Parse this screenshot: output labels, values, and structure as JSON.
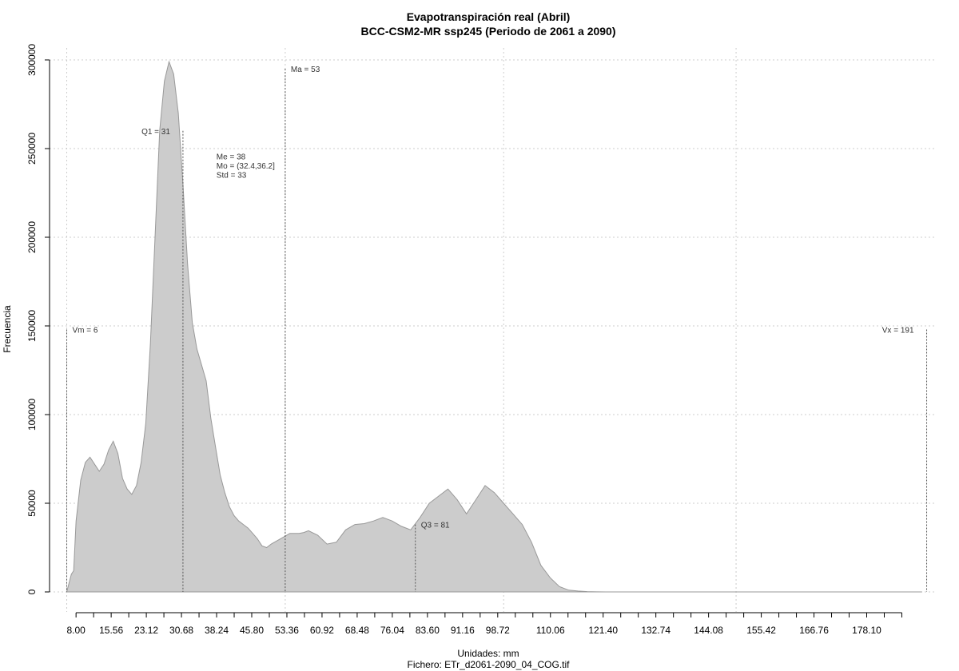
{
  "chart_data": {
    "type": "area",
    "title": "Evapotranspiración real (Abril)",
    "subtitle": "BCC-CSM2-MR ssp245 (Periodo de 2061 a 2090)",
    "xlabel": "Unidades: mm",
    "footer": "Fichero: ETr_d2061-2090_04_COG.tif",
    "ylabel": "Frecuencia",
    "xlim": [
      2.3,
      192.8
    ],
    "ylim": [
      0,
      300000
    ],
    "grid": true,
    "fill_color": "#cccccc",
    "line_color": "#999999",
    "x_tick_labels": [
      "8.00",
      "15.56",
      "23.12",
      "30.68",
      "38.24",
      "45.80",
      "53.36",
      "60.92",
      "68.48",
      "76.04",
      "83.60",
      "91.16",
      "98.72",
      "110.06",
      "121.40",
      "132.74",
      "144.08",
      "155.42",
      "166.76",
      "178.10"
    ],
    "x_tick_label_positions": [
      8.0,
      15.56,
      23.12,
      30.68,
      38.24,
      45.8,
      53.36,
      60.92,
      68.48,
      76.04,
      83.6,
      91.16,
      98.72,
      110.06,
      121.4,
      132.74,
      144.08,
      155.42,
      166.76,
      178.1
    ],
    "x_minor_ticks": [
      8.0,
      11.78,
      15.56,
      19.34,
      23.12,
      26.9,
      30.68,
      34.46,
      38.24,
      42.02,
      45.8,
      49.58,
      53.36,
      57.14,
      60.92,
      64.7,
      68.48,
      72.26,
      76.04,
      79.82,
      83.6,
      87.38,
      91.16,
      94.94,
      98.72,
      102.5,
      106.28,
      110.06,
      113.84,
      117.62,
      121.4,
      125.18,
      128.96,
      132.74,
      136.52,
      140.3,
      144.08,
      147.86,
      151.64,
      155.42,
      159.2,
      162.98,
      166.76,
      170.54,
      174.32,
      178.1,
      181.88,
      185.66
    ],
    "y_ticks": [
      0,
      50000,
      100000,
      150000,
      200000,
      250000,
      300000
    ],
    "y_tick_labels": [
      "0",
      "50000",
      "100000",
      "150000",
      "200000",
      "250000",
      "300000"
    ],
    "x_gridlines": [
      6,
      53,
      100,
      150
    ],
    "x": [
      6,
      7,
      7.5,
      8,
      9,
      10,
      11,
      12,
      13,
      14,
      15,
      16,
      17,
      18,
      19,
      20,
      21,
      22,
      23,
      24,
      25,
      26,
      27,
      28,
      29,
      30,
      31,
      32,
      33,
      34,
      35,
      36,
      37,
      38,
      39,
      40,
      41,
      42,
      43,
      44,
      45,
      46,
      47,
      48,
      49,
      50,
      52,
      54,
      55,
      56,
      57,
      58,
      60,
      62,
      64,
      66,
      68,
      70,
      72,
      74,
      76,
      78,
      80,
      82,
      84,
      86,
      88,
      90,
      92,
      94,
      96,
      98,
      100,
      102,
      104,
      106,
      108,
      110,
      112,
      114,
      116,
      118,
      120,
      122,
      124,
      126,
      128,
      130,
      132,
      134,
      136,
      140,
      150,
      160,
      170,
      180,
      190
    ],
    "values": [
      0,
      10000,
      12000,
      40000,
      63000,
      73000,
      76000,
      72000,
      68000,
      72000,
      80000,
      85000,
      78000,
      64000,
      58000,
      55000,
      60000,
      73000,
      95000,
      140000,
      200000,
      260000,
      288000,
      299000,
      292000,
      270000,
      230000,
      185000,
      152000,
      137000,
      128000,
      119000,
      98000,
      82000,
      66000,
      56000,
      48000,
      43000,
      40000,
      38000,
      36000,
      33000,
      30000,
      26000,
      25000,
      27000,
      30000,
      33000,
      33000,
      33000,
      33500,
      34500,
      32000,
      27000,
      28000,
      35000,
      38000,
      38500,
      40000,
      42000,
      40000,
      37000,
      35000,
      42000,
      50000,
      54000,
      58000,
      52000,
      44000,
      52000,
      60000,
      56000,
      50000,
      44000,
      38000,
      28000,
      15000,
      8000,
      3000,
      1000,
      500,
      200,
      50,
      0,
      0,
      0,
      0,
      0,
      0,
      0,
      0,
      0,
      0,
      0,
      0,
      0,
      0
    ],
    "reference_lines": [
      {
        "x": 6,
        "y_top": 148000,
        "label": "Vm = 6",
        "label_side": "right"
      },
      {
        "x": 31,
        "y_top": 260000,
        "label": "Q1 = 31",
        "label_side": "left"
      },
      {
        "x": 53,
        "y_top": 295000,
        "label": "Ma = 53",
        "label_side": "right"
      },
      {
        "x": 81,
        "y_top": 38000,
        "label": "Q3 = 81",
        "label_side": "right"
      },
      {
        "x": 191,
        "y_top": 148000,
        "label": "Vx = 191",
        "label_side": "left"
      }
    ],
    "stats_text": [
      "Me = 38",
      "Mo = (32.4,36.2]",
      "Std = 33"
    ]
  }
}
